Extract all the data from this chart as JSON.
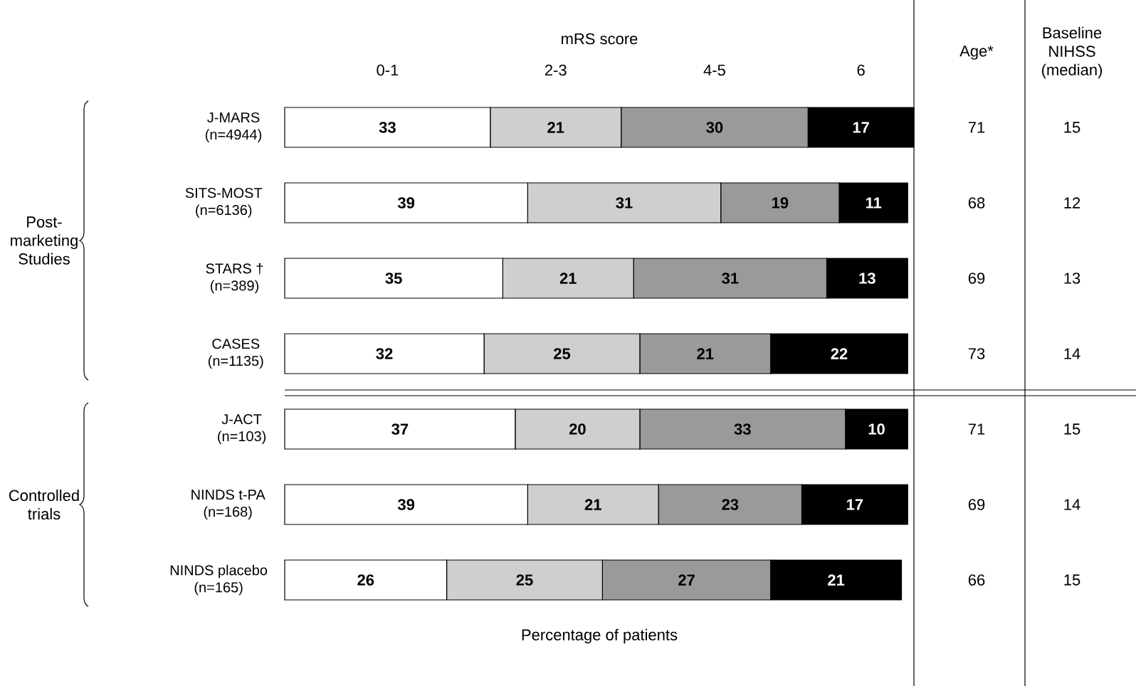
{
  "chart_data": [
    {
      "type": "bar",
      "orientation": "horizontal",
      "stacked": true,
      "title": "mRS score",
      "xlabel": "Percentage of patients",
      "tick_labels": "y",
      "data_labels": true,
      "categories": [
        "J-MARS (n=4944)",
        "SITS-MOST (n=6136)",
        "STARS † (n=389)",
        "CASES (n=1135)",
        "J-ACT (n=103)",
        "NINDS t-PA (n=168)",
        "NINDS placebo (n=165)"
      ],
      "series": [
        {
          "name": "0-1",
          "color": "#ffffff",
          "values": [
            33,
            39,
            35,
            32,
            37,
            39,
            26
          ]
        },
        {
          "name": "2-3",
          "color": "#cfcfcf",
          "values": [
            21,
            31,
            21,
            25,
            20,
            21,
            25
          ]
        },
        {
          "name": "4-5",
          "color": "#9a9a9a",
          "values": [
            30,
            19,
            31,
            21,
            33,
            23,
            27
          ]
        },
        {
          "name": "6",
          "color": "#000000",
          "values": [
            17,
            11,
            13,
            22,
            10,
            17,
            21
          ]
        }
      ],
      "annotations": [
        "Post-marketing Studies",
        "Controlled trials"
      ]
    },
    {
      "type": "heatmap",
      "data_labels": true,
      "categories": [
        "Age*",
        "Baseline NIHSS (median)"
      ],
      "y_categories": [
        null,
        null,
        null,
        null,
        null,
        null,
        null
      ],
      "cells": [
        [
          71,
          15
        ],
        [
          68,
          12
        ],
        [
          69,
          13
        ],
        [
          73,
          14
        ],
        [
          71,
          15
        ],
        [
          69,
          14
        ],
        [
          66,
          15
        ]
      ]
    }
  ]
}
